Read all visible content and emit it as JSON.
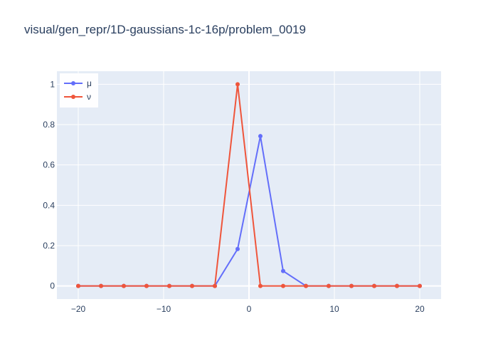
{
  "chart_data": {
    "type": "line",
    "title": "visual/gen_repr/1D-gaussians-1c-16p/problem_0019",
    "xlabel": "",
    "ylabel": "",
    "xlim": [
      -22.5,
      22.5
    ],
    "ylim": [
      -0.065,
      1.065
    ],
    "x": [
      -20,
      -17.333,
      -14.667,
      -12,
      -9.333,
      -6.667,
      -4,
      -1.333,
      1.333,
      4,
      6.667,
      9.333,
      12,
      14.667,
      17.333,
      20
    ],
    "xticks": [
      -20,
      -10,
      0,
      10,
      20
    ],
    "xtick_labels": [
      "−20",
      "−10",
      "0",
      "10",
      "20"
    ],
    "yticks": [
      0,
      0.2,
      0.4,
      0.6,
      0.8,
      1
    ],
    "ytick_labels": [
      "0",
      "0.2",
      "0.4",
      "0.6",
      "0.8",
      "1"
    ],
    "grid": true,
    "legend_position": "top-left",
    "background": "#e5ecf6",
    "series": [
      {
        "name": "μ",
        "color": "#636efa",
        "values": [
          0,
          0,
          0,
          0,
          0,
          0,
          0,
          0.183,
          0.743,
          0.074,
          0,
          0,
          0,
          0,
          0,
          0
        ]
      },
      {
        "name": "ν",
        "color": "#ef553b",
        "values": [
          0,
          0,
          0,
          0,
          0,
          0,
          0,
          1,
          0,
          0,
          0,
          0,
          0,
          0,
          0,
          0
        ]
      }
    ]
  }
}
